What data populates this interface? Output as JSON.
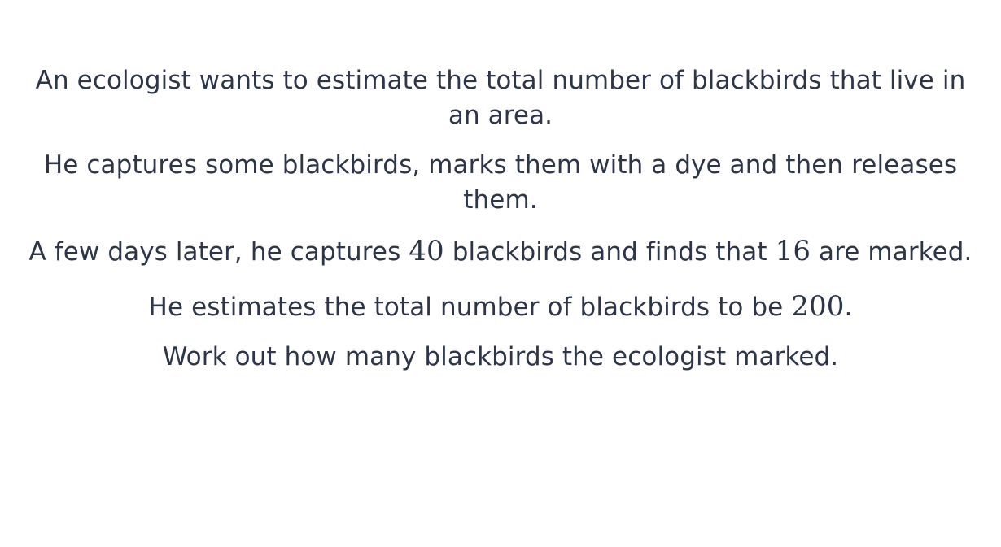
{
  "question": {
    "line1": "An ecologist wants to estimate the total number of blackbirds that live in an area.",
    "line2": "He captures some blackbirds, marks them with a dye and then releases them.",
    "line3": {
      "pre": "A few days later, he captures ",
      "num1": "40",
      "mid": " blackbirds and finds that ",
      "num2": "16",
      "post": " are marked."
    },
    "line4": {
      "pre": "He estimates the total number of blackbirds to be ",
      "num": "200",
      "post": "."
    },
    "line5": "Work out how many blackbirds the ecologist marked."
  }
}
